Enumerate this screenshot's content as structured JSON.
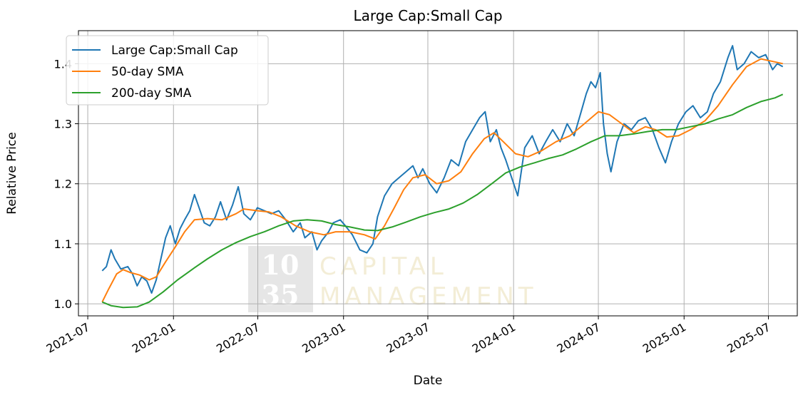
{
  "chart_data": {
    "type": "line",
    "title": "Large Cap:Small Cap",
    "xlabel": "Date",
    "ylabel": "Relative Price",
    "x_range": [
      "2021-06-11",
      "2025-09-01"
    ],
    "ylim": [
      0.98,
      1.455
    ],
    "grid": true,
    "legend_position": "upper-left",
    "x_ticks": [
      "2021-07",
      "2022-01",
      "2022-07",
      "2023-01",
      "2023-07",
      "2024-01",
      "2024-07",
      "2025-01",
      "2025-07"
    ],
    "y_ticks": [
      1.0,
      1.1,
      1.2,
      1.3,
      1.4
    ],
    "y_tick_labels": [
      "1.0",
      "1.1",
      "1.2",
      "1.3",
      "1.4"
    ],
    "series": [
      {
        "name": "Large Cap:Small Cap",
        "color": "#1f77b4",
        "points": [
          [
            "2021-08-01",
            1.055
          ],
          [
            "2021-08-10",
            1.062
          ],
          [
            "2021-08-20",
            1.09
          ],
          [
            "2021-08-28",
            1.075
          ],
          [
            "2021-09-10",
            1.058
          ],
          [
            "2021-09-25",
            1.062
          ],
          [
            "2021-10-05",
            1.05
          ],
          [
            "2021-10-15",
            1.03
          ],
          [
            "2021-10-25",
            1.045
          ],
          [
            "2021-11-05",
            1.038
          ],
          [
            "2021-11-15",
            1.018
          ],
          [
            "2021-11-25",
            1.04
          ],
          [
            "2021-12-05",
            1.075
          ],
          [
            "2021-12-15",
            1.11
          ],
          [
            "2021-12-25",
            1.13
          ],
          [
            "2022-01-05",
            1.1
          ],
          [
            "2022-01-15",
            1.125
          ],
          [
            "2022-01-25",
            1.14
          ],
          [
            "2022-02-05",
            1.155
          ],
          [
            "2022-02-15",
            1.182
          ],
          [
            "2022-02-25",
            1.16
          ],
          [
            "2022-03-08",
            1.135
          ],
          [
            "2022-03-20",
            1.13
          ],
          [
            "2022-04-01",
            1.145
          ],
          [
            "2022-04-12",
            1.17
          ],
          [
            "2022-04-25",
            1.14
          ],
          [
            "2022-05-08",
            1.165
          ],
          [
            "2022-05-20",
            1.195
          ],
          [
            "2022-06-01",
            1.15
          ],
          [
            "2022-06-15",
            1.14
          ],
          [
            "2022-06-30",
            1.16
          ],
          [
            "2022-07-15",
            1.155
          ],
          [
            "2022-07-30",
            1.15
          ],
          [
            "2022-08-15",
            1.155
          ],
          [
            "2022-08-30",
            1.14
          ],
          [
            "2022-09-15",
            1.12
          ],
          [
            "2022-09-30",
            1.135
          ],
          [
            "2022-10-10",
            1.11
          ],
          [
            "2022-10-25",
            1.12
          ],
          [
            "2022-11-05",
            1.09
          ],
          [
            "2022-11-15",
            1.105
          ],
          [
            "2022-11-30",
            1.12
          ],
          [
            "2022-12-10",
            1.135
          ],
          [
            "2022-12-25",
            1.14
          ],
          [
            "2023-01-05",
            1.13
          ],
          [
            "2023-01-20",
            1.115
          ],
          [
            "2023-02-05",
            1.09
          ],
          [
            "2023-02-20",
            1.085
          ],
          [
            "2023-03-05",
            1.1
          ],
          [
            "2023-03-15",
            1.145
          ],
          [
            "2023-03-30",
            1.18
          ],
          [
            "2023-04-15",
            1.2
          ],
          [
            "2023-04-30",
            1.21
          ],
          [
            "2023-05-15",
            1.22
          ],
          [
            "2023-05-30",
            1.23
          ],
          [
            "2023-06-10",
            1.21
          ],
          [
            "2023-06-20",
            1.225
          ],
          [
            "2023-07-05",
            1.2
          ],
          [
            "2023-07-20",
            1.185
          ],
          [
            "2023-08-05",
            1.21
          ],
          [
            "2023-08-20",
            1.24
          ],
          [
            "2023-09-05",
            1.23
          ],
          [
            "2023-09-20",
            1.27
          ],
          [
            "2023-10-05",
            1.29
          ],
          [
            "2023-10-20",
            1.31
          ],
          [
            "2023-11-01",
            1.32
          ],
          [
            "2023-11-12",
            1.27
          ],
          [
            "2023-11-25",
            1.29
          ],
          [
            "2023-12-05",
            1.26
          ],
          [
            "2023-12-15",
            1.24
          ],
          [
            "2023-12-28",
            1.21
          ],
          [
            "2024-01-10",
            1.18
          ],
          [
            "2024-01-25",
            1.26
          ],
          [
            "2024-02-10",
            1.28
          ],
          [
            "2024-02-25",
            1.25
          ],
          [
            "2024-03-10",
            1.27
          ],
          [
            "2024-03-25",
            1.29
          ],
          [
            "2024-04-10",
            1.27
          ],
          [
            "2024-04-25",
            1.3
          ],
          [
            "2024-05-10",
            1.28
          ],
          [
            "2024-05-25",
            1.32
          ],
          [
            "2024-06-05",
            1.35
          ],
          [
            "2024-06-15",
            1.37
          ],
          [
            "2024-06-25",
            1.36
          ],
          [
            "2024-07-05",
            1.385
          ],
          [
            "2024-07-12",
            1.3
          ],
          [
            "2024-07-20",
            1.25
          ],
          [
            "2024-07-28",
            1.22
          ],
          [
            "2024-08-10",
            1.27
          ],
          [
            "2024-08-25",
            1.3
          ],
          [
            "2024-09-10",
            1.29
          ],
          [
            "2024-09-25",
            1.305
          ],
          [
            "2024-10-10",
            1.31
          ],
          [
            "2024-10-25",
            1.29
          ],
          [
            "2024-11-08",
            1.26
          ],
          [
            "2024-11-22",
            1.235
          ],
          [
            "2024-12-05",
            1.27
          ],
          [
            "2024-12-20",
            1.3
          ],
          [
            "2025-01-05",
            1.32
          ],
          [
            "2025-01-20",
            1.33
          ],
          [
            "2025-02-05",
            1.31
          ],
          [
            "2025-02-20",
            1.32
          ],
          [
            "2025-03-05",
            1.35
          ],
          [
            "2025-03-20",
            1.37
          ],
          [
            "2025-04-05",
            1.41
          ],
          [
            "2025-04-15",
            1.43
          ],
          [
            "2025-04-25",
            1.39
          ],
          [
            "2025-05-10",
            1.4
          ],
          [
            "2025-05-25",
            1.42
          ],
          [
            "2025-06-10",
            1.41
          ],
          [
            "2025-06-25",
            1.415
          ],
          [
            "2025-07-10",
            1.39
          ],
          [
            "2025-07-20",
            1.4
          ],
          [
            "2025-08-01",
            1.395
          ]
        ]
      },
      {
        "name": "50-day SMA",
        "color": "#ff7f0e",
        "points": [
          [
            "2021-08-01",
            1.003
          ],
          [
            "2021-08-15",
            1.025
          ],
          [
            "2021-09-01",
            1.05
          ],
          [
            "2021-09-15",
            1.057
          ],
          [
            "2021-10-01",
            1.052
          ],
          [
            "2021-10-20",
            1.048
          ],
          [
            "2021-11-10",
            1.04
          ],
          [
            "2021-11-25",
            1.045
          ],
          [
            "2021-12-15",
            1.07
          ],
          [
            "2022-01-05",
            1.095
          ],
          [
            "2022-01-25",
            1.12
          ],
          [
            "2022-02-15",
            1.14
          ],
          [
            "2022-03-15",
            1.142
          ],
          [
            "2022-04-15",
            1.14
          ],
          [
            "2022-05-15",
            1.15
          ],
          [
            "2022-06-01",
            1.158
          ],
          [
            "2022-07-01",
            1.155
          ],
          [
            "2022-07-25",
            1.153
          ],
          [
            "2022-08-20",
            1.145
          ],
          [
            "2022-09-20",
            1.13
          ],
          [
            "2022-10-20",
            1.12
          ],
          [
            "2022-11-20",
            1.115
          ],
          [
            "2022-12-15",
            1.12
          ],
          [
            "2023-01-15",
            1.12
          ],
          [
            "2023-02-15",
            1.115
          ],
          [
            "2023-03-10",
            1.108
          ],
          [
            "2023-03-30",
            1.13
          ],
          [
            "2023-04-20",
            1.16
          ],
          [
            "2023-05-10",
            1.19
          ],
          [
            "2023-05-30",
            1.21
          ],
          [
            "2023-06-25",
            1.215
          ],
          [
            "2023-07-20",
            1.2
          ],
          [
            "2023-08-15",
            1.205
          ],
          [
            "2023-09-10",
            1.22
          ],
          [
            "2023-10-05",
            1.25
          ],
          [
            "2023-10-30",
            1.275
          ],
          [
            "2023-11-20",
            1.285
          ],
          [
            "2023-12-10",
            1.27
          ],
          [
            "2024-01-05",
            1.25
          ],
          [
            "2024-02-01",
            1.245
          ],
          [
            "2024-03-01",
            1.255
          ],
          [
            "2024-04-01",
            1.27
          ],
          [
            "2024-05-01",
            1.28
          ],
          [
            "2024-06-01",
            1.3
          ],
          [
            "2024-07-01",
            1.32
          ],
          [
            "2024-07-25",
            1.315
          ],
          [
            "2024-08-20",
            1.3
          ],
          [
            "2024-09-15",
            1.285
          ],
          [
            "2024-10-10",
            1.295
          ],
          [
            "2024-11-01",
            1.29
          ],
          [
            "2024-11-25",
            1.278
          ],
          [
            "2024-12-20",
            1.28
          ],
          [
            "2025-01-15",
            1.29
          ],
          [
            "2025-02-15",
            1.305
          ],
          [
            "2025-03-15",
            1.33
          ],
          [
            "2025-04-15",
            1.365
          ],
          [
            "2025-05-15",
            1.395
          ],
          [
            "2025-06-15",
            1.408
          ],
          [
            "2025-07-15",
            1.403
          ],
          [
            "2025-08-01",
            1.4
          ]
        ]
      },
      {
        "name": "200-day SMA",
        "color": "#2ca02c",
        "points": [
          [
            "2021-08-01",
            1.003
          ],
          [
            "2021-08-20",
            0.997
          ],
          [
            "2021-09-15",
            0.994
          ],
          [
            "2021-10-15",
            0.995
          ],
          [
            "2021-11-10",
            1.003
          ],
          [
            "2021-12-10",
            1.02
          ],
          [
            "2022-01-10",
            1.04
          ],
          [
            "2022-02-15",
            1.06
          ],
          [
            "2022-03-15",
            1.075
          ],
          [
            "2022-04-15",
            1.09
          ],
          [
            "2022-05-15",
            1.102
          ],
          [
            "2022-06-15",
            1.112
          ],
          [
            "2022-07-15",
            1.12
          ],
          [
            "2022-08-15",
            1.13
          ],
          [
            "2022-09-15",
            1.138
          ],
          [
            "2022-10-15",
            1.14
          ],
          [
            "2022-11-15",
            1.138
          ],
          [
            "2022-12-15",
            1.132
          ],
          [
            "2023-01-15",
            1.128
          ],
          [
            "2023-02-15",
            1.123
          ],
          [
            "2023-03-15",
            1.122
          ],
          [
            "2023-04-15",
            1.128
          ],
          [
            "2023-05-15",
            1.136
          ],
          [
            "2023-06-15",
            1.145
          ],
          [
            "2023-07-15",
            1.152
          ],
          [
            "2023-08-15",
            1.158
          ],
          [
            "2023-09-15",
            1.168
          ],
          [
            "2023-10-15",
            1.182
          ],
          [
            "2023-11-15",
            1.2
          ],
          [
            "2023-12-15",
            1.218
          ],
          [
            "2024-01-15",
            1.228
          ],
          [
            "2024-02-15",
            1.235
          ],
          [
            "2024-03-15",
            1.242
          ],
          [
            "2024-04-15",
            1.248
          ],
          [
            "2024-05-15",
            1.258
          ],
          [
            "2024-06-15",
            1.27
          ],
          [
            "2024-07-15",
            1.28
          ],
          [
            "2024-08-15",
            1.28
          ],
          [
            "2024-09-15",
            1.283
          ],
          [
            "2024-10-15",
            1.287
          ],
          [
            "2024-11-15",
            1.29
          ],
          [
            "2024-12-15",
            1.29
          ],
          [
            "2025-01-15",
            1.295
          ],
          [
            "2025-02-15",
            1.3
          ],
          [
            "2025-03-15",
            1.308
          ],
          [
            "2025-04-15",
            1.315
          ],
          [
            "2025-05-15",
            1.327
          ],
          [
            "2025-06-15",
            1.337
          ],
          [
            "2025-07-15",
            1.343
          ],
          [
            "2025-08-01",
            1.349
          ]
        ]
      }
    ]
  },
  "watermark": {
    "line1_number": "10",
    "line2_number": "35",
    "line1_text": "CAPITAL",
    "line2_text": "MANAGEMENT",
    "box_color": "#e6e6e6",
    "text_color": "#f3edd6"
  }
}
